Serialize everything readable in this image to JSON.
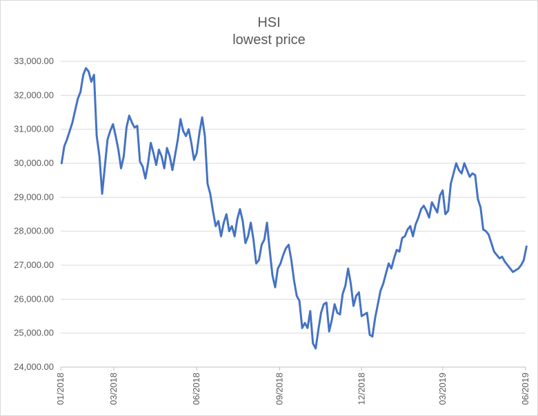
{
  "chart_data": {
    "type": "line",
    "title": "HSI",
    "subtitle": "lowest price",
    "xlabel": "",
    "ylabel": "",
    "ylim": [
      24000,
      33000
    ],
    "xlim": [
      "2018-01",
      "2019-06"
    ],
    "y_ticks": [
      "24,000.00",
      "25,000.00",
      "26,000.00",
      "27,000.00",
      "28,000.00",
      "29,000.00",
      "30,000.00",
      "31,000.00",
      "32,000.00",
      "33,000.00"
    ],
    "y_tick_values": [
      24000,
      25000,
      26000,
      27000,
      28000,
      29000,
      30000,
      31000,
      32000,
      33000
    ],
    "x_ticks": [
      {
        "label": "01/2018",
        "date": "2018-01"
      },
      {
        "label": "03/2018",
        "date": "2018-03"
      },
      {
        "label": "06/2018",
        "date": "2018-06"
      },
      {
        "label": "09/2018",
        "date": "2018-09"
      },
      {
        "label": "12/2018",
        "date": "2018-12"
      },
      {
        "label": "03/2019",
        "date": "2019-03"
      },
      {
        "label": "06/2019",
        "date": "2019-06"
      }
    ],
    "grid": "horizontal",
    "legend": "none",
    "series": [
      {
        "color": "#4472C4",
        "x": [
          "2018-01-02",
          "2018-01-05",
          "2018-01-08",
          "2018-01-11",
          "2018-01-14",
          "2018-01-17",
          "2018-01-20",
          "2018-01-23",
          "2018-01-26",
          "2018-01-29",
          "2018-02-01",
          "2018-02-04",
          "2018-02-07",
          "2018-02-10",
          "2018-02-13",
          "2018-02-16",
          "2018-02-19",
          "2018-02-22",
          "2018-02-25",
          "2018-02-28",
          "2018-03-03",
          "2018-03-06",
          "2018-03-09",
          "2018-03-12",
          "2018-03-15",
          "2018-03-18",
          "2018-03-21",
          "2018-03-24",
          "2018-03-27",
          "2018-03-30",
          "2018-04-02",
          "2018-04-05",
          "2018-04-08",
          "2018-04-11",
          "2018-04-14",
          "2018-04-17",
          "2018-04-20",
          "2018-04-23",
          "2018-04-26",
          "2018-04-29",
          "2018-05-02",
          "2018-05-05",
          "2018-05-08",
          "2018-05-11",
          "2018-05-14",
          "2018-05-17",
          "2018-05-20",
          "2018-05-23",
          "2018-05-26",
          "2018-05-29",
          "2018-06-01",
          "2018-06-04",
          "2018-06-07",
          "2018-06-10",
          "2018-06-13",
          "2018-06-16",
          "2018-06-19",
          "2018-06-22",
          "2018-06-25",
          "2018-06-28",
          "2018-07-01",
          "2018-07-04",
          "2018-07-07",
          "2018-07-10",
          "2018-07-13",
          "2018-07-16",
          "2018-07-19",
          "2018-07-22",
          "2018-07-25",
          "2018-07-28",
          "2018-07-31",
          "2018-08-03",
          "2018-08-06",
          "2018-08-09",
          "2018-08-12",
          "2018-08-15",
          "2018-08-18",
          "2018-08-21",
          "2018-08-24",
          "2018-08-27",
          "2018-08-30",
          "2018-09-02",
          "2018-09-05",
          "2018-09-08",
          "2018-09-11",
          "2018-09-14",
          "2018-09-17",
          "2018-09-20",
          "2018-09-23",
          "2018-09-26",
          "2018-09-29",
          "2018-10-02",
          "2018-10-05",
          "2018-10-08",
          "2018-10-11",
          "2018-10-14",
          "2018-10-17",
          "2018-10-20",
          "2018-10-23",
          "2018-10-26",
          "2018-10-29",
          "2018-11-01",
          "2018-11-04",
          "2018-11-07",
          "2018-11-10",
          "2018-11-13",
          "2018-11-16",
          "2018-11-19",
          "2018-11-22",
          "2018-11-25",
          "2018-11-28",
          "2018-12-01",
          "2018-12-04",
          "2018-12-07",
          "2018-12-10",
          "2018-12-13",
          "2018-12-16",
          "2018-12-19",
          "2018-12-22",
          "2018-12-25",
          "2018-12-28",
          "2018-12-31",
          "2019-01-03",
          "2019-01-06",
          "2019-01-09",
          "2019-01-12",
          "2019-01-15",
          "2019-01-18",
          "2019-01-21",
          "2019-01-24",
          "2019-01-27",
          "2019-01-30",
          "2019-02-02",
          "2019-02-05",
          "2019-02-08",
          "2019-02-11",
          "2019-02-14",
          "2019-02-17",
          "2019-02-20",
          "2019-02-23",
          "2019-02-26",
          "2019-03-01",
          "2019-03-04",
          "2019-03-07",
          "2019-03-10",
          "2019-03-13",
          "2019-03-16",
          "2019-03-19",
          "2019-03-22",
          "2019-03-25",
          "2019-03-28",
          "2019-03-31",
          "2019-04-03",
          "2019-04-06",
          "2019-04-09",
          "2019-04-12",
          "2019-04-15",
          "2019-04-18",
          "2019-04-21",
          "2019-04-24",
          "2019-04-27",
          "2019-04-30",
          "2019-05-03",
          "2019-05-06",
          "2019-05-09",
          "2019-05-12",
          "2019-05-15",
          "2019-05-18",
          "2019-05-21",
          "2019-05-24",
          "2019-05-27",
          "2019-05-30",
          "2019-06-02"
        ],
        "values": [
          30000,
          30500,
          30700,
          30950,
          31200,
          31550,
          31900,
          32100,
          32600,
          32800,
          32700,
          32400,
          32600,
          30800,
          30200,
          29100,
          29900,
          30700,
          30950,
          31150,
          30800,
          30400,
          29850,
          30200,
          31050,
          31400,
          31200,
          31050,
          31100,
          30050,
          29900,
          29550,
          30000,
          30600,
          30300,
          29950,
          30400,
          30200,
          29850,
          30450,
          30200,
          29800,
          30250,
          30700,
          31300,
          30950,
          30800,
          31000,
          30600,
          30100,
          30300,
          30900,
          31350,
          30800,
          29400,
          29100,
          28600,
          28150,
          28300,
          27850,
          28250,
          28500,
          28000,
          28150,
          27850,
          28350,
          28650,
          28300,
          27650,
          27850,
          28250,
          27750,
          27050,
          27150,
          27600,
          27750,
          28250,
          27450,
          26700,
          26350,
          26900,
          27050,
          27300,
          27500,
          27600,
          27150,
          26550,
          26100,
          25950,
          25150,
          25300,
          25150,
          25650,
          24700,
          24550,
          25100,
          25600,
          25850,
          25900,
          25050,
          25400,
          25850,
          25600,
          25550,
          26150,
          26400,
          26900,
          26450,
          25800,
          26100,
          26200,
          25500,
          25550,
          25600,
          24950,
          24900,
          25450,
          25850,
          26250,
          26450,
          26750,
          27050,
          26900,
          27200,
          27450,
          27400,
          27800,
          27850,
          28050,
          28150,
          27850,
          28200,
          28400,
          28650,
          28750,
          28600,
          28400,
          28850,
          28700,
          28550,
          29050,
          29200,
          28500,
          28600,
          29400,
          29700,
          30000,
          29800,
          29700,
          30000,
          29800,
          29600,
          29700,
          29650,
          28950,
          28700,
          28050,
          28000,
          27900,
          27650,
          27400,
          27300,
          27200,
          27250,
          27100,
          27000,
          26900,
          26800,
          26850,
          26900,
          27000,
          27150,
          27550
        ]
      }
    ]
  }
}
